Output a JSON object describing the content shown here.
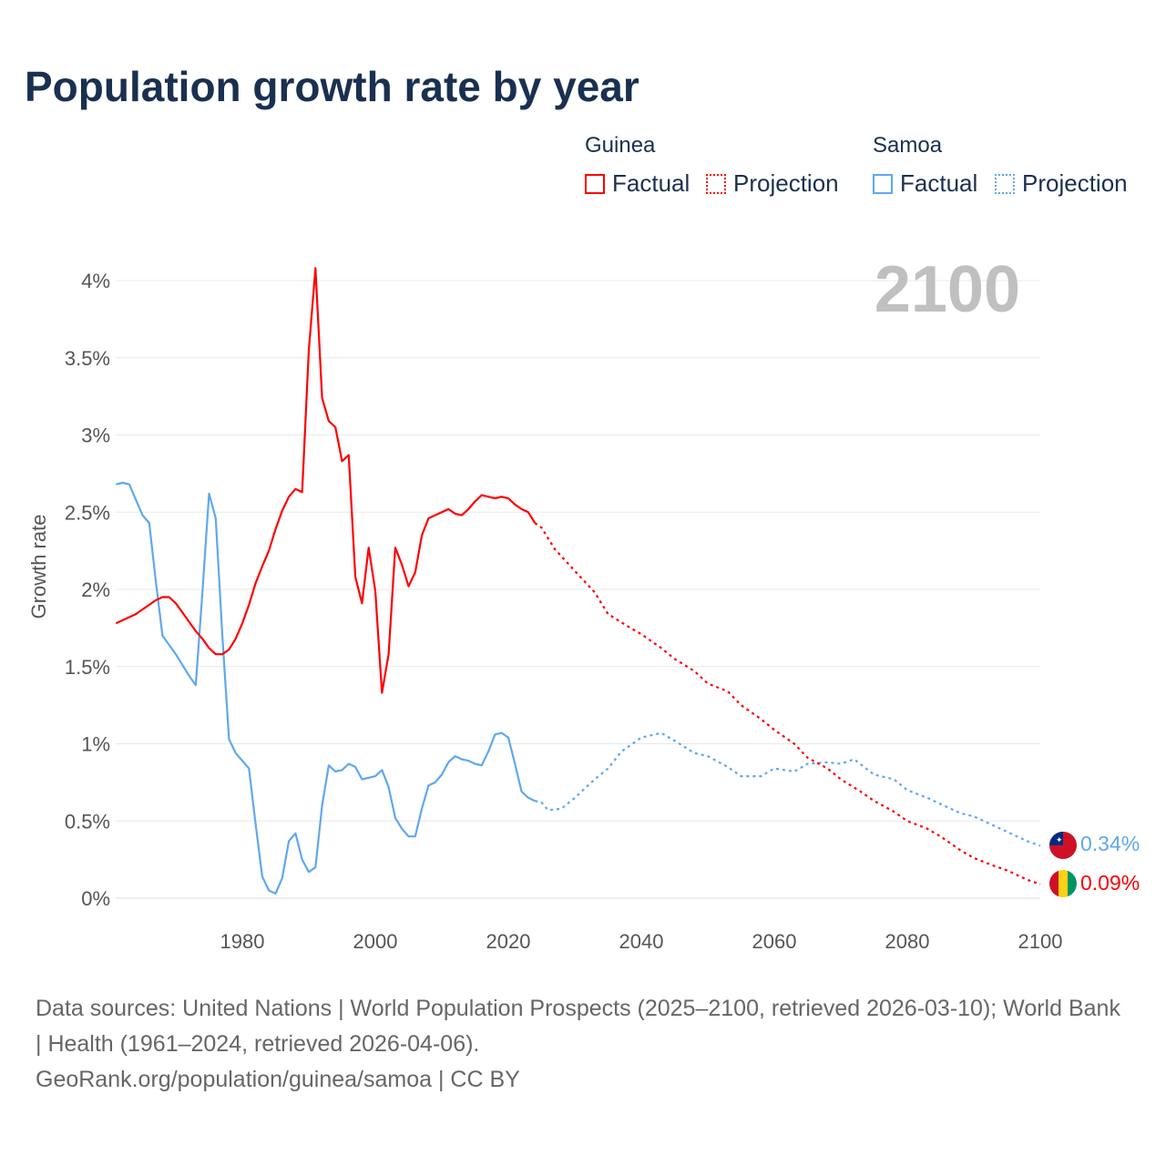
{
  "chart_data": {
    "type": "line",
    "title": "Population growth rate by year",
    "ylabel": "Growth rate",
    "xlabel": "",
    "xlim": [
      1961,
      2100
    ],
    "ylim": [
      0,
      4.2
    ],
    "grid": true,
    "current_year_label": "2100",
    "x_ticks": [
      1980,
      2000,
      2020,
      2040,
      2060,
      2080,
      2100
    ],
    "x_tick_labels": [
      "1980",
      "2000",
      "2020",
      "2040",
      "2060",
      "2080",
      "2100"
    ],
    "y_ticks": [
      0,
      0.5,
      1,
      1.5,
      2,
      2.5,
      3,
      3.5,
      4
    ],
    "y_tick_labels": [
      "0%",
      "0.5%",
      "1%",
      "1.5%",
      "2%",
      "2.5%",
      "3%",
      "3.5%",
      "4%"
    ],
    "legend": {
      "placement": "top-right",
      "groups": [
        {
          "name": "Guinea",
          "factual": "Factual",
          "projection": "Projection"
        },
        {
          "name": "Samoa",
          "factual": "Factual",
          "projection": "Projection"
        }
      ]
    },
    "series": [
      {
        "name": "Guinea",
        "color": "#ff0000",
        "end_label": "0.09%",
        "flag": "guinea-flag",
        "factual": {
          "x": [
            1961,
            1962,
            1963,
            1964,
            1965,
            1966,
            1967,
            1968,
            1969,
            1970,
            1971,
            1972,
            1973,
            1974,
            1975,
            1976,
            1977,
            1978,
            1979,
            1980,
            1981,
            1982,
            1983,
            1984,
            1985,
            1986,
            1987,
            1988,
            1989,
            1990,
            1991,
            1992,
            1993,
            1994,
            1995,
            1996,
            1997,
            1998,
            1999,
            2000,
            2001,
            2002,
            2003,
            2004,
            2005,
            2006,
            2007,
            2008,
            2009,
            2010,
            2011,
            2012,
            2013,
            2014,
            2015,
            2016,
            2017,
            2018,
            2019,
            2020,
            2021,
            2022,
            2023,
            2024
          ],
          "y": [
            1.78,
            1.8,
            1.82,
            1.84,
            1.87,
            1.9,
            1.93,
            1.95,
            1.95,
            1.91,
            1.85,
            1.79,
            1.73,
            1.68,
            1.62,
            1.58,
            1.58,
            1.61,
            1.68,
            1.78,
            1.9,
            2.04,
            2.15,
            2.25,
            2.39,
            2.51,
            2.6,
            2.65,
            2.63,
            3.55,
            4.08,
            3.24,
            3.09,
            3.05,
            2.83,
            2.87,
            2.08,
            1.91,
            2.27,
            1.99,
            1.33,
            1.58,
            2.27,
            2.16,
            2.02,
            2.11,
            2.35,
            2.46,
            2.48,
            2.5,
            2.52,
            2.49,
            2.48,
            2.52,
            2.57,
            2.61,
            2.6,
            2.59,
            2.6,
            2.59,
            2.55,
            2.52,
            2.5,
            2.43
          ]
        },
        "projection": {
          "x": [
            2024,
            2025,
            2027,
            2030,
            2033,
            2035,
            2038,
            2040,
            2043,
            2045,
            2048,
            2050,
            2053,
            2055,
            2058,
            2060,
            2063,
            2065,
            2068,
            2070,
            2073,
            2075,
            2078,
            2080,
            2083,
            2085,
            2088,
            2090,
            2093,
            2095,
            2098,
            2100
          ],
          "y": [
            2.43,
            2.4,
            2.26,
            2.12,
            1.98,
            1.84,
            1.76,
            1.71,
            1.62,
            1.55,
            1.47,
            1.39,
            1.34,
            1.25,
            1.16,
            1.09,
            1.0,
            0.91,
            0.84,
            0.77,
            0.69,
            0.63,
            0.56,
            0.5,
            0.45,
            0.4,
            0.31,
            0.26,
            0.21,
            0.18,
            0.12,
            0.09
          ]
        }
      },
      {
        "name": "Samoa",
        "color": "#5fa8ee",
        "end_label": "0.34%",
        "flag": "samoa-flag",
        "factual": {
          "x": [
            1961,
            1962,
            1963,
            1964,
            1965,
            1966,
            1967,
            1968,
            1969,
            1970,
            1971,
            1972,
            1973,
            1974,
            1975,
            1976,
            1977,
            1978,
            1979,
            1980,
            1981,
            1982,
            1983,
            1984,
            1985,
            1986,
            1987,
            1988,
            1989,
            1990,
            1991,
            1992,
            1993,
            1994,
            1995,
            1996,
            1997,
            1998,
            1999,
            2000,
            2001,
            2002,
            2003,
            2004,
            2005,
            2006,
            2007,
            2008,
            2009,
            2010,
            2011,
            2012,
            2013,
            2014,
            2015,
            2016,
            2017,
            2018,
            2019,
            2020,
            2021,
            2022,
            2023,
            2024
          ],
          "y": [
            2.68,
            2.69,
            2.68,
            2.58,
            2.48,
            2.43,
            2.05,
            1.7,
            1.64,
            1.58,
            1.51,
            1.44,
            1.38,
            1.98,
            2.62,
            2.46,
            1.7,
            1.03,
            0.94,
            0.89,
            0.84,
            0.48,
            0.14,
            0.05,
            0.03,
            0.13,
            0.37,
            0.42,
            0.25,
            0.17,
            0.2,
            0.6,
            0.86,
            0.82,
            0.83,
            0.87,
            0.85,
            0.77,
            0.78,
            0.79,
            0.83,
            0.72,
            0.52,
            0.45,
            0.4,
            0.4,
            0.58,
            0.73,
            0.75,
            0.8,
            0.88,
            0.92,
            0.9,
            0.89,
            0.87,
            0.86,
            0.95,
            1.06,
            1.07,
            1.04,
            0.87,
            0.69,
            0.65,
            0.63
          ]
        },
        "projection": {
          "x": [
            2024,
            2025,
            2026,
            2028,
            2030,
            2033,
            2035,
            2037,
            2040,
            2043,
            2045,
            2048,
            2050,
            2053,
            2055,
            2058,
            2060,
            2063,
            2065,
            2068,
            2070,
            2072,
            2075,
            2078,
            2080,
            2083,
            2085,
            2088,
            2090,
            2093,
            2095,
            2098,
            2100
          ],
          "y": [
            0.63,
            0.62,
            0.57,
            0.58,
            0.65,
            0.77,
            0.84,
            0.95,
            1.04,
            1.07,
            1.02,
            0.94,
            0.92,
            0.85,
            0.79,
            0.79,
            0.84,
            0.82,
            0.87,
            0.88,
            0.87,
            0.9,
            0.8,
            0.77,
            0.7,
            0.65,
            0.61,
            0.55,
            0.53,
            0.47,
            0.43,
            0.37,
            0.34
          ]
        }
      }
    ]
  },
  "footer": {
    "sources": "Data sources: United Nations | World Population Prospects (2025–2100, retrieved 2026-03-10); World Bank | Health (1961–2024, retrieved 2026-04-06).",
    "credit": "GeoRank.org/population/guinea/samoa | CC BY"
  }
}
